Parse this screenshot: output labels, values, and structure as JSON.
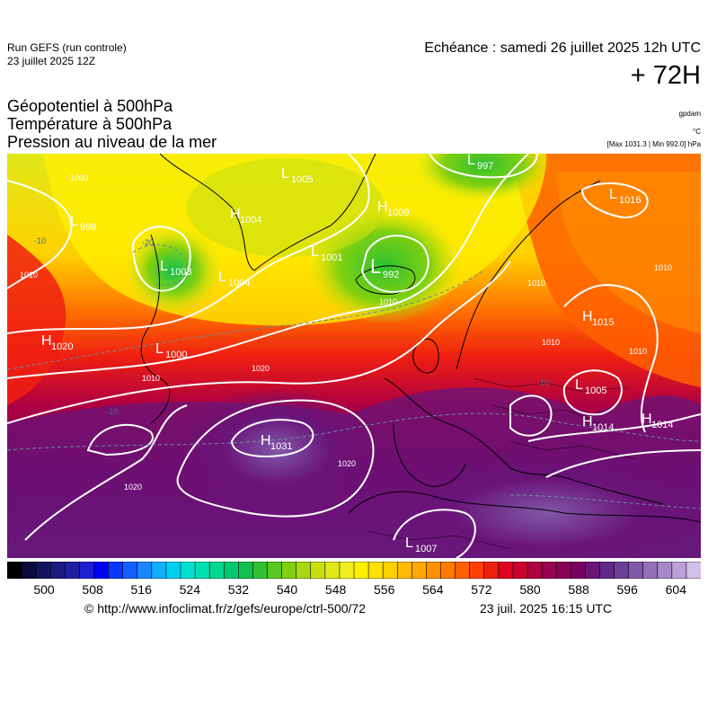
{
  "header": {
    "run_title": "Run GEFS (run controle)",
    "run_date": "23 juillet 2025 12Z",
    "valid_time": "Echéance : samedi 26 juillet 2025 12h UTC",
    "lead_time": "+ 72H"
  },
  "titles": {
    "line1": "Géopotentiel à 500hPa",
    "line2": "Température à 500hPa",
    "line3": "Pression au niveau de la mer"
  },
  "units": {
    "geopotential": "gpdam",
    "temperature": "°C",
    "minmax": "[Max 1031.3 | Min 992.0] hPa"
  },
  "map": {
    "pressure_centers": [
      {
        "type": "L",
        "value": "998"
      },
      {
        "type": "L",
        "value": "1005"
      },
      {
        "type": "L",
        "value": "997"
      },
      {
        "type": "L",
        "value": "1016"
      },
      {
        "type": "H",
        "value": "1009"
      },
      {
        "type": "L",
        "value": "1003"
      },
      {
        "type": "L",
        "value": "1004"
      },
      {
        "type": "H",
        "value": "1004"
      },
      {
        "type": "L",
        "value": "1001"
      },
      {
        "type": "L",
        "value": "992"
      },
      {
        "type": "H",
        "value": "1020"
      },
      {
        "type": "L",
        "value": "1000"
      },
      {
        "type": "H",
        "value": "1015"
      },
      {
        "type": "L",
        "value": "1005"
      },
      {
        "type": "H",
        "value": "1014"
      },
      {
        "type": "H",
        "value": "1014"
      },
      {
        "type": "H",
        "value": "1031"
      },
      {
        "type": "L",
        "value": "1007"
      }
    ],
    "isobar_labels": [
      "1000",
      "1010",
      "1010",
      "1010",
      "1020",
      "1020",
      "1020",
      "1010",
      "1010",
      "1010",
      "1010"
    ],
    "temperature_labels": [
      "-20",
      "-10",
      "-10",
      "-10"
    ]
  },
  "colorbar": {
    "labels": [
      "500",
      "508",
      "516",
      "524",
      "532",
      "540",
      "548",
      "556",
      "564",
      "572",
      "580",
      "588",
      "596",
      "604"
    ],
    "colors": [
      "#000000",
      "#0a0a3c",
      "#14145e",
      "#1a1a80",
      "#1f1fa4",
      "#1f1fd0",
      "#0000ff",
      "#0838ff",
      "#1060ff",
      "#1888ff",
      "#10b0ff",
      "#00d0f0",
      "#00e0d0",
      "#00e0b0",
      "#00d890",
      "#00c870",
      "#10c050",
      "#30c030",
      "#58c820",
      "#80d010",
      "#a8d810",
      "#c8e010",
      "#e0e818",
      "#f0f020",
      "#fff000",
      "#ffe000",
      "#ffd000",
      "#ffbc00",
      "#ffa800",
      "#ff9000",
      "#ff7800",
      "#ff6000",
      "#ff4000",
      "#f02010",
      "#e00020",
      "#c80030",
      "#b00040",
      "#980050",
      "#880058",
      "#780060",
      "#6a1478",
      "#602888",
      "#6c4098",
      "#8058a8",
      "#9470b8",
      "#a888c8",
      "#bca0d8",
      "#d0c0e6"
    ]
  },
  "footer": {
    "url": "© http://www.infoclimat.fr/z/gefs/europe/ctrl-500/72",
    "generated": "23 juil. 2025 16:15 UTC"
  }
}
